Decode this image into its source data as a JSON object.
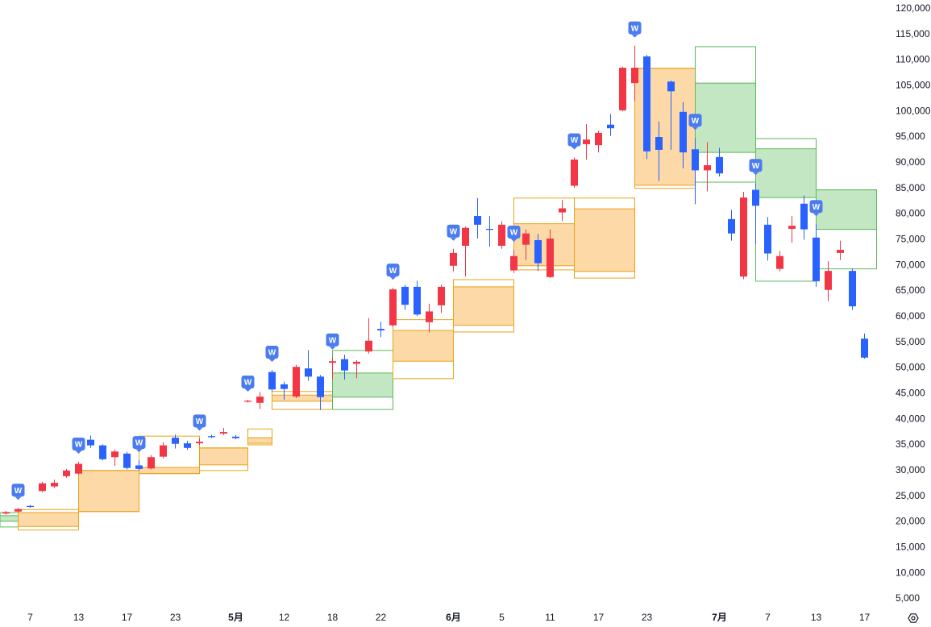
{
  "chart_data": {
    "type": "candlestick",
    "categories": [
      null,
      null,
      "7",
      null,
      null,
      null,
      "13",
      null,
      null,
      null,
      "17",
      null,
      null,
      null,
      "23",
      null,
      null,
      null,
      null,
      "5月",
      null,
      null,
      null,
      "12",
      null,
      null,
      null,
      "18",
      null,
      null,
      null,
      "22",
      null,
      null,
      null,
      null,
      null,
      "6月",
      null,
      null,
      null,
      "5",
      null,
      null,
      null,
      "11",
      null,
      null,
      null,
      "17",
      null,
      null,
      null,
      "23",
      null,
      null,
      null,
      null,
      null,
      "7月",
      null,
      null,
      null,
      "7",
      null,
      null,
      null,
      "13",
      null,
      null,
      null,
      "17"
    ],
    "x_bold": [
      19,
      37,
      59
    ],
    "open": [
      21600,
      22000,
      23100,
      26000,
      26900,
      28900,
      29400,
      36000,
      34900,
      32600,
      33300,
      31000,
      30400,
      32700,
      36400,
      35300,
      35300,
      36700,
      37200,
      36600,
      43400,
      43200,
      49200,
      46800,
      44400,
      49900,
      48300,
      51000,
      51700,
      50800,
      53200,
      57600,
      58300,
      65800,
      65800,
      58900,
      62200,
      69900,
      73800,
      79600,
      77100,
      73800,
      69000,
      74000,
      74900,
      67700,
      80300,
      85500,
      93600,
      93400,
      97400,
      100200,
      105500,
      110700,
      95000,
      105800,
      99900,
      92600,
      88500,
      91100,
      79000,
      67800,
      84700,
      77900,
      69300,
      77100,
      82000,
      75400,
      65200,
      72400,
      68900,
      55700
    ],
    "high": [
      22100,
      22700,
      23300,
      27800,
      28200,
      30300,
      31700,
      36800,
      35100,
      34100,
      33600,
      32000,
      33000,
      35500,
      37000,
      35800,
      36200,
      37000,
      38300,
      36900,
      43800,
      45300,
      49600,
      47300,
      50600,
      53500,
      48600,
      52000,
      52600,
      51500,
      59700,
      59000,
      65600,
      66200,
      67000,
      62500,
      66200,
      73200,
      77500,
      83100,
      79600,
      78600,
      73000,
      77000,
      76100,
      77000,
      82700,
      91000,
      97500,
      96200,
      99500,
      108700,
      112800,
      111000,
      98000,
      106000,
      101800,
      94800,
      94000,
      92900,
      80800,
      84300,
      86000,
      79400,
      72800,
      79600,
      83600,
      78000,
      70800,
      74800,
      69400,
      56700
    ],
    "low": [
      21400,
      21800,
      22700,
      25800,
      26600,
      28600,
      29200,
      34400,
      32000,
      30900,
      30200,
      30000,
      30200,
      32400,
      34300,
      34000,
      35000,
      36300,
      36900,
      36100,
      43200,
      42000,
      45400,
      43800,
      44100,
      47500,
      41800,
      47800,
      47700,
      48000,
      52800,
      56000,
      57900,
      61300,
      60100,
      56900,
      60700,
      68800,
      67800,
      75200,
      73600,
      73200,
      68500,
      71000,
      68900,
      67500,
      78600,
      85100,
      90600,
      92000,
      95200,
      100000,
      102000,
      90700,
      86400,
      92500,
      88900,
      81900,
      84400,
      87300,
      74800,
      67300,
      74100,
      70900,
      68800,
      74400,
      75000,
      65800,
      63000,
      71000,
      61300,
      51800
    ],
    "close": [
      21900,
      22500,
      22900,
      27500,
      27600,
      30000,
      31300,
      34900,
      32200,
      33700,
      30500,
      30300,
      32600,
      34900,
      35200,
      34400,
      35600,
      36500,
      37500,
      36300,
      43600,
      44400,
      45800,
      45900,
      50200,
      48300,
      44300,
      51300,
      49500,
      51200,
      55300,
      57300,
      65300,
      62300,
      60400,
      61000,
      65800,
      72400,
      77300,
      77900,
      76900,
      77900,
      71800,
      76200,
      70400,
      75200,
      81100,
      90600,
      94500,
      95800,
      96700,
      108500,
      108500,
      92200,
      92500,
      103900,
      92000,
      88500,
      89500,
      87900,
      76200,
      83200,
      81600,
      72300,
      71800,
      77700,
      77000,
      66900,
      68900,
      73000,
      62000,
      52000
    ],
    "up_color": "#f23645",
    "down_color": "#2962ff",
    "zones": [
      {
        "from": -0.5,
        "to": 1,
        "fill": [
          20100,
          21200
        ],
        "outline": [
          19000,
          21800
        ],
        "color": "#c3e6c3",
        "stroke": "#5cb85c"
      },
      {
        "from": 1,
        "to": 6,
        "fill": [
          19100,
          21800
        ],
        "outline": [
          18400,
          22400
        ],
        "color": "#fdd9a8",
        "stroke": "#e8a317"
      },
      {
        "from": 6,
        "to": 11,
        "fill": [
          22000,
          30000
        ],
        "outline": [
          22000,
          30000
        ],
        "color": "#fdd9a8",
        "stroke": "#e8a317"
      },
      {
        "from": 11,
        "to": 16,
        "fill": [
          29400,
          30600
        ],
        "outline": [
          29400,
          36700
        ],
        "color": "#fdd9a8",
        "stroke": "#e8a317"
      },
      {
        "from": 16,
        "to": 20,
        "fill": [
          31100,
          34400
        ],
        "outline": [
          30000,
          34400
        ],
        "color": "#fdd9a8",
        "stroke": "#e8a317"
      },
      {
        "from": 20,
        "to": 22,
        "fill": [
          35300,
          36400
        ],
        "outline": [
          35000,
          38100
        ],
        "color": "#fdd9a8",
        "stroke": "#e8a317"
      },
      {
        "from": 22,
        "to": 27,
        "fill": [
          43500,
          44700
        ],
        "outline": [
          41900,
          45400
        ],
        "color": "#fdd9a8",
        "stroke": "#e8a317"
      },
      {
        "from": 27,
        "to": 32,
        "fill": [
          44300,
          49000
        ],
        "outline": [
          41900,
          53400
        ],
        "color": "#c3e6c3",
        "stroke": "#5cb85c"
      },
      {
        "from": 32,
        "to": 37,
        "fill": [
          51300,
          57300
        ],
        "outline": [
          47900,
          59400
        ],
        "color": "#fdd9a8",
        "stroke": "#e8a317"
      },
      {
        "from": 37,
        "to": 42,
        "fill": [
          58300,
          65800
        ],
        "outline": [
          57000,
          67200
        ],
        "color": "#fdd9a8",
        "stroke": "#e8a317"
      },
      {
        "from": 42,
        "to": 47,
        "fill": [
          69900,
          78100
        ],
        "outline": [
          69100,
          83100
        ],
        "color": "#fdd9a8",
        "stroke": "#e8a317"
      },
      {
        "from": 47,
        "to": 52,
        "fill": [
          68800,
          81000
        ],
        "outline": [
          67500,
          83100
        ],
        "color": "#fdd9a8",
        "stroke": "#e8a317"
      },
      {
        "from": 52,
        "to": 57,
        "fill": [
          85600,
          108400
        ],
        "outline": [
          85000,
          108400
        ],
        "color": "#fdd9a8",
        "stroke": "#e8a317"
      },
      {
        "from": 57,
        "to": 62,
        "fill": [
          92000,
          105500
        ],
        "outline": [
          86200,
          112600
        ],
        "color": "#c3e6c3",
        "stroke": "#5cb85c"
      },
      {
        "from": 62,
        "to": 67,
        "fill": [
          83200,
          92700
        ],
        "outline": [
          66900,
          94700
        ],
        "color": "#c3e6c3",
        "stroke": "#5cb85c"
      },
      {
        "from": 67,
        "to": 72,
        "fill": [
          77000,
          84700
        ],
        "outline": [
          69300,
          84700
        ],
        "color": "#c3e6c3",
        "stroke": "#5cb85c"
      }
    ],
    "markers": [
      {
        "index": 1,
        "label": "W"
      },
      {
        "index": 6,
        "label": "W"
      },
      {
        "index": 11,
        "label": "W"
      },
      {
        "index": 16,
        "label": "W"
      },
      {
        "index": 20,
        "label": "W"
      },
      {
        "index": 22,
        "label": "W"
      },
      {
        "index": 27,
        "label": "W"
      },
      {
        "index": 32,
        "label": "W"
      },
      {
        "index": 37,
        "label": "W"
      },
      {
        "index": 42,
        "label": "W"
      },
      {
        "index": 47,
        "label": "W"
      },
      {
        "index": 52,
        "label": "W"
      },
      {
        "index": 57,
        "label": "W"
      },
      {
        "index": 62,
        "label": "W"
      },
      {
        "index": 67,
        "label": "W"
      }
    ],
    "ylim": [
      3900,
      121700
    ],
    "yticks": [
      {
        "value": 5000,
        "label": "5,000"
      },
      {
        "value": 10000,
        "label": "10,000"
      },
      {
        "value": 15000,
        "label": "15,000"
      },
      {
        "value": 20000,
        "label": "20,000"
      },
      {
        "value": 25000,
        "label": "25,000"
      },
      {
        "value": 30000,
        "label": "30,000"
      },
      {
        "value": 35000,
        "label": "35,000"
      },
      {
        "value": 40000,
        "label": "40,000"
      },
      {
        "value": 45000,
        "label": "45,000"
      },
      {
        "value": 50000,
        "label": "50,000"
      },
      {
        "value": 55000,
        "label": "55,000"
      },
      {
        "value": 60000,
        "label": "60,000"
      },
      {
        "value": 65000,
        "label": "65,000"
      },
      {
        "value": 70000,
        "label": "70,000"
      },
      {
        "value": 75000,
        "label": "75,000"
      },
      {
        "value": 80000,
        "label": "80,000"
      },
      {
        "value": 85000,
        "label": "85,000"
      },
      {
        "value": 90000,
        "label": "90,000"
      },
      {
        "value": 95000,
        "label": "95,000"
      },
      {
        "value": 100000,
        "label": "100,000"
      },
      {
        "value": 105000,
        "label": "105,000"
      },
      {
        "value": 110000,
        "label": "110,000"
      },
      {
        "value": 115000,
        "label": "115,000"
      },
      {
        "value": 120000,
        "label": "120,000"
      }
    ]
  }
}
